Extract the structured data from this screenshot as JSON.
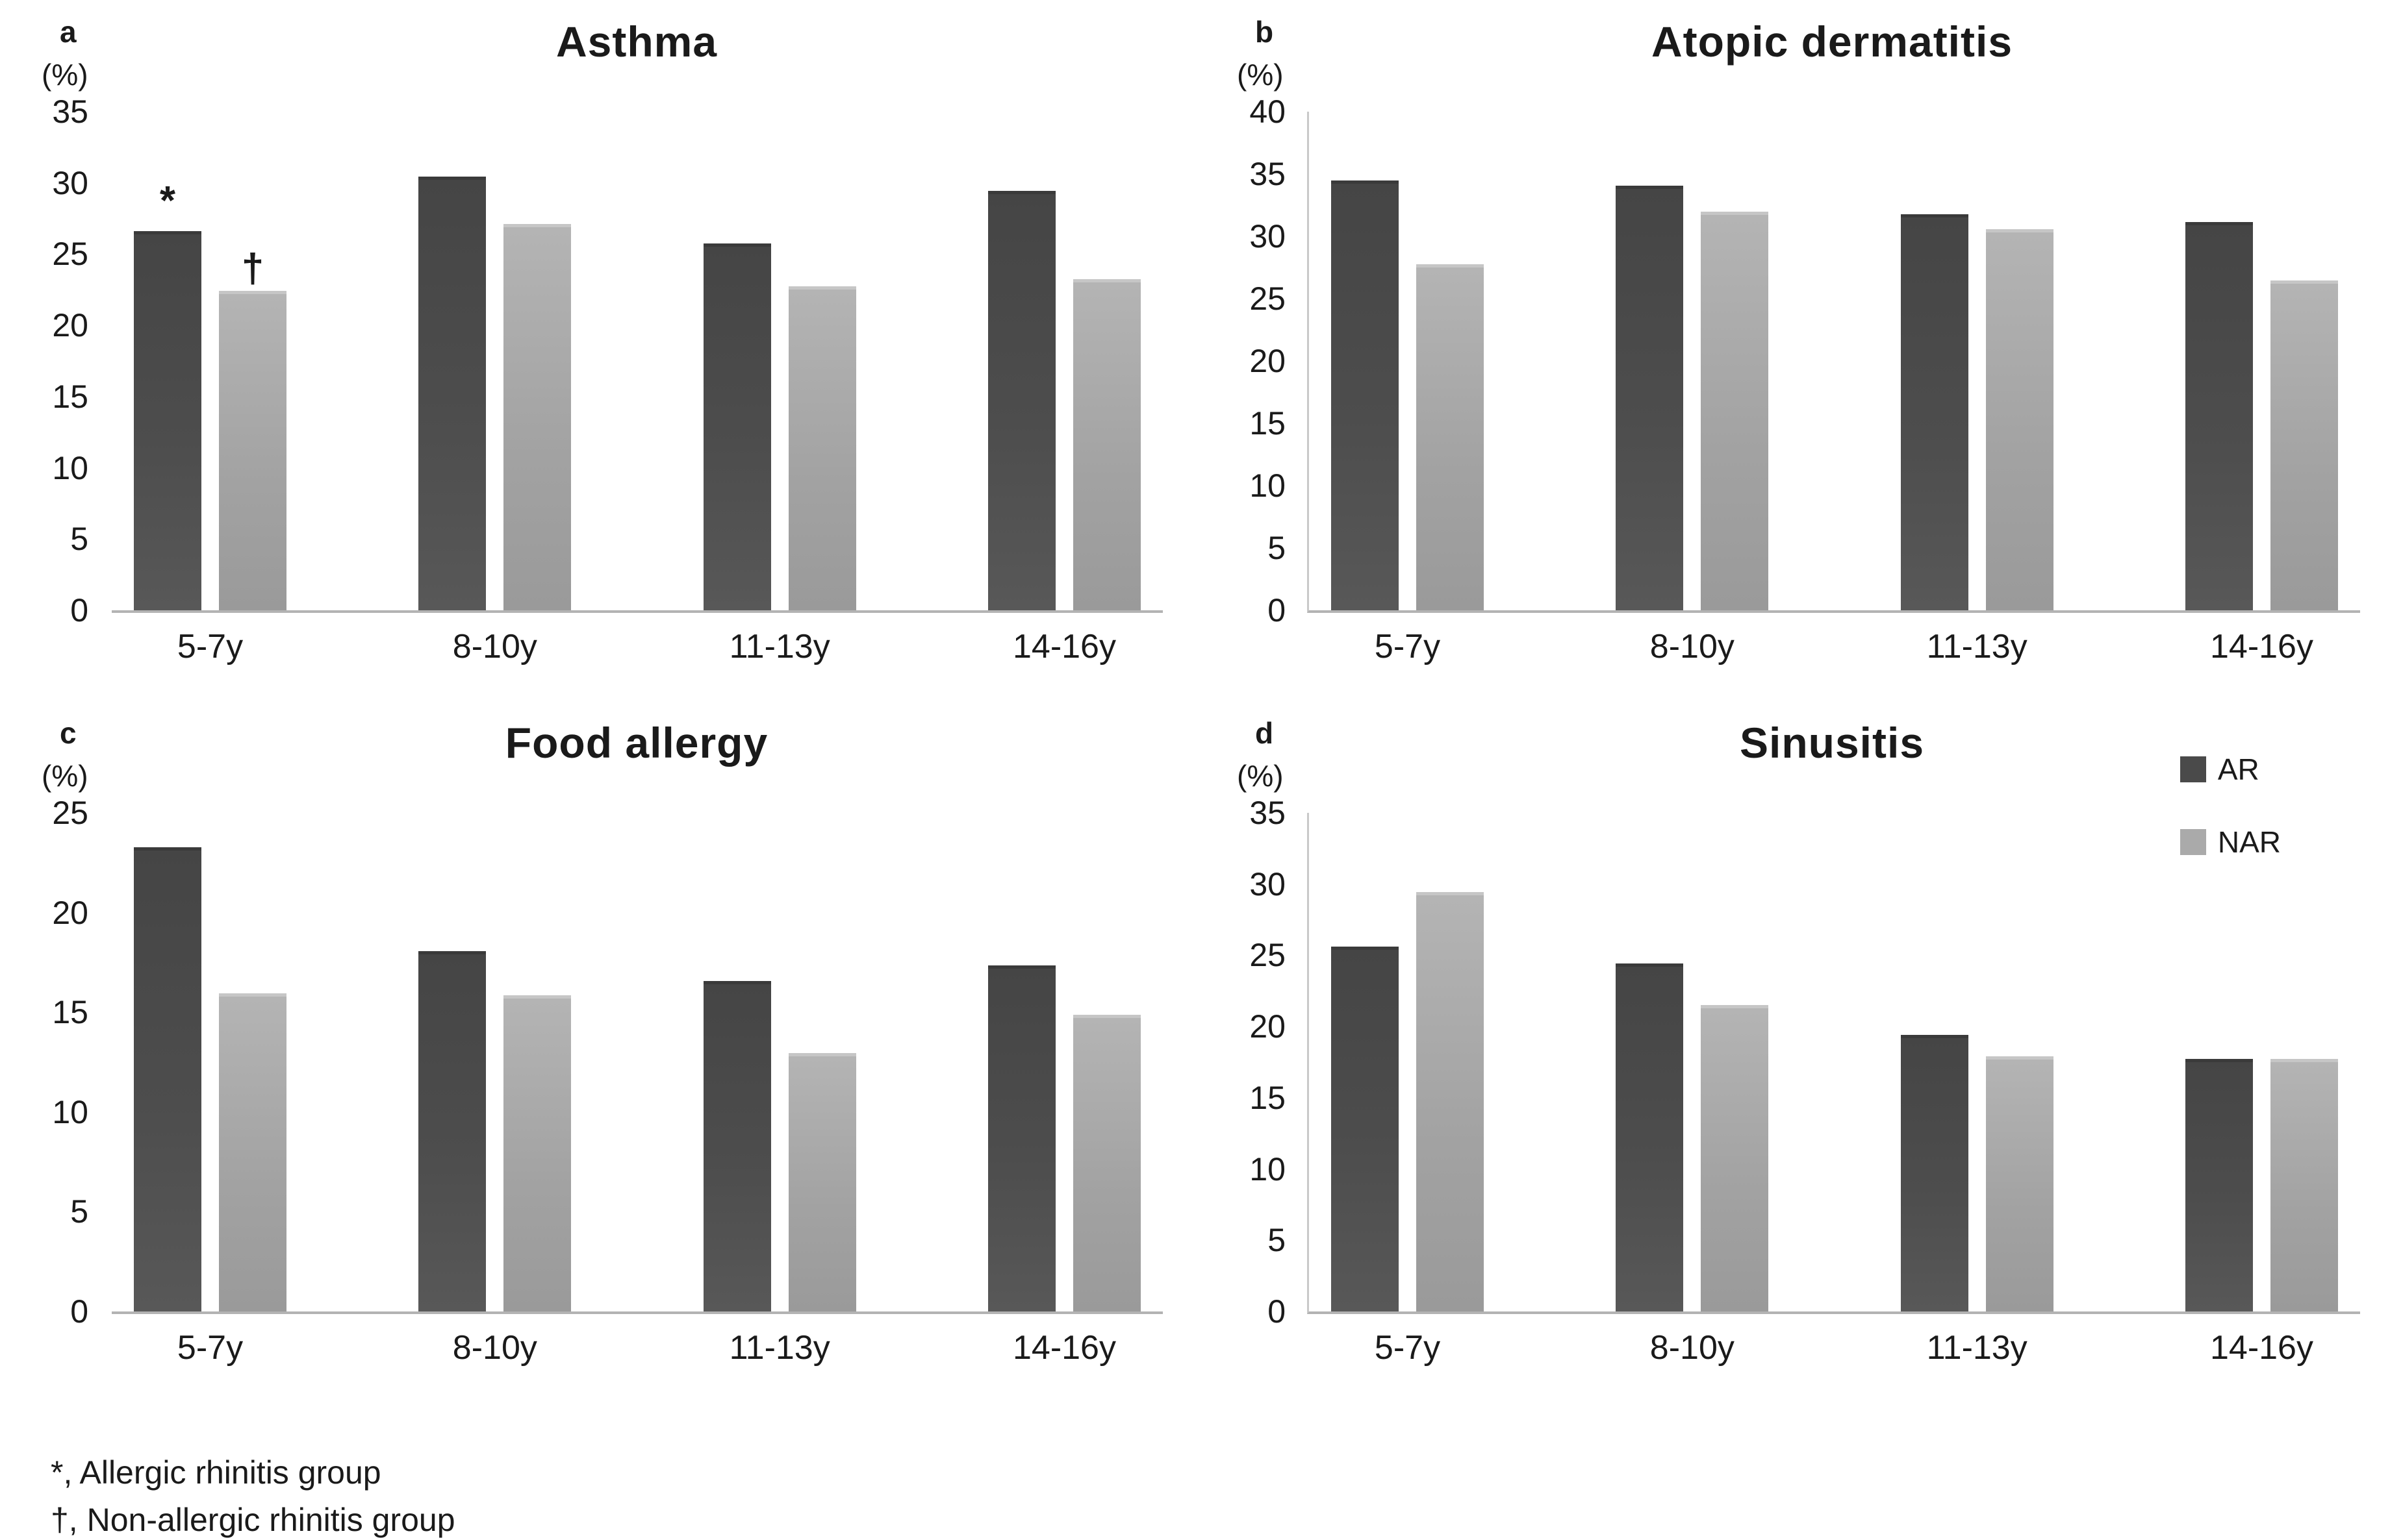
{
  "figure": {
    "background": "#ffffff",
    "footnotes": [
      "*, Allergic rhinitis group",
      "†, Non-allergic rhinitis group"
    ],
    "legend": {
      "position": "top-right-of-panel-d",
      "items": [
        {
          "label": "AR",
          "color": "#4a4a4a"
        },
        {
          "label": "NAR",
          "color": "#aaaaaa"
        }
      ]
    },
    "series_colors": {
      "AR": {
        "top": "#454545",
        "bottom": "#585858",
        "cap": "#3a3a3a"
      },
      "NAR": {
        "top": "#b4b4b4",
        "bottom": "#9a9a9a",
        "cap": "#c6c6c6"
      }
    }
  },
  "chart_data": [
    {
      "panel": "a",
      "type": "bar",
      "title": "Asthma",
      "ylabel": "(%)",
      "ylim": [
        0,
        35
      ],
      "ytick_step": 5,
      "grid": false,
      "y_axis_line": false,
      "show_legend": false,
      "categories": [
        "5-7y",
        "8-10y",
        "11-13y",
        "14-16y"
      ],
      "series": [
        {
          "name": "AR",
          "values": [
            26.4,
            30.2,
            25.5,
            29.2
          ]
        },
        {
          "name": "NAR",
          "values": [
            22.2,
            26.9,
            22.5,
            23.0
          ]
        }
      ],
      "annotations": [
        {
          "text": "*",
          "series": 0,
          "category": 0
        },
        {
          "text": "†",
          "series": 1,
          "category": 0
        }
      ]
    },
    {
      "panel": "b",
      "type": "bar",
      "title": "Atopic dermatitis",
      "ylabel": "(%)",
      "ylim": [
        0,
        40
      ],
      "ytick_step": 5,
      "grid": false,
      "y_axis_line": true,
      "show_legend": false,
      "categories": [
        "5-7y",
        "8-10y",
        "11-13y",
        "14-16y"
      ],
      "series": [
        {
          "name": "AR",
          "values": [
            34.2,
            33.8,
            31.5,
            30.9
          ]
        },
        {
          "name": "NAR",
          "values": [
            27.5,
            31.7,
            30.3,
            26.2
          ]
        }
      ],
      "annotations": []
    },
    {
      "panel": "c",
      "type": "bar",
      "title": "Food allergy",
      "ylabel": "(%)",
      "ylim": [
        0,
        25
      ],
      "ytick_step": 5,
      "grid": false,
      "y_axis_line": false,
      "show_legend": false,
      "categories": [
        "5-7y",
        "8-10y",
        "11-13y",
        "14-16y"
      ],
      "series": [
        {
          "name": "AR",
          "values": [
            23.1,
            17.9,
            16.4,
            17.2
          ]
        },
        {
          "name": "NAR",
          "values": [
            15.8,
            15.7,
            12.8,
            14.7
          ]
        }
      ],
      "annotations": []
    },
    {
      "panel": "d",
      "type": "bar",
      "title": "Sinusitis",
      "ylabel": "(%)",
      "ylim": [
        0,
        35
      ],
      "ytick_step": 5,
      "grid": false,
      "y_axis_line": true,
      "show_legend": true,
      "categories": [
        "5-7y",
        "8-10y",
        "11-13y",
        "14-16y"
      ],
      "series": [
        {
          "name": "AR",
          "values": [
            25.4,
            24.2,
            19.2,
            17.5
          ]
        },
        {
          "name": "NAR",
          "values": [
            29.2,
            21.3,
            17.7,
            17.5
          ]
        }
      ],
      "annotations": []
    }
  ]
}
